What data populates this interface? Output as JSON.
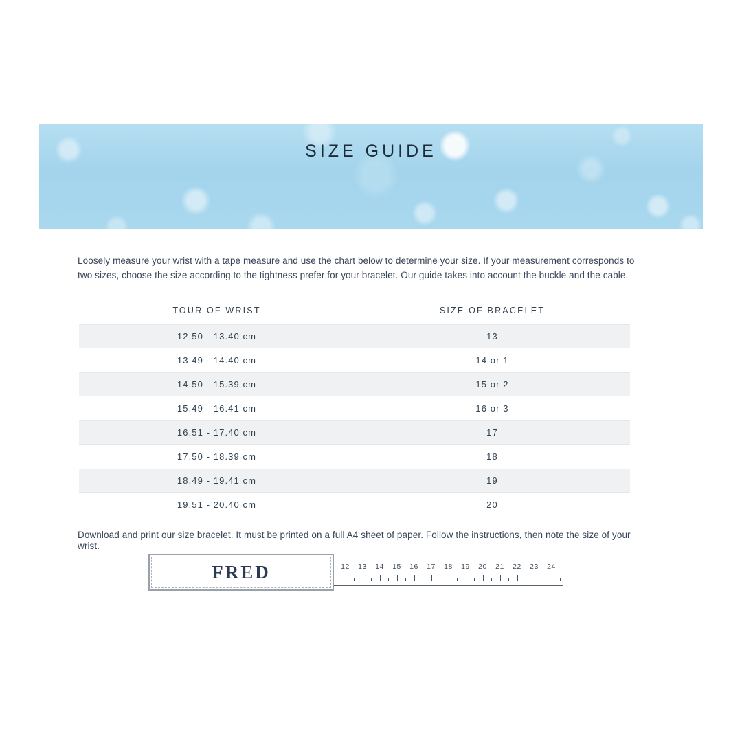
{
  "banner": {
    "title": "SIZE GUIDE"
  },
  "intro": "Loosely measure your wrist with a tape measure and use the chart below to determine your size. If your measurement corresponds to two sizes, choose the size according to the tightness prefer for your bracelet. Our guide takes into account the buckle and the cable.",
  "table": {
    "headers": [
      "TOUR OF WRIST",
      "SIZE OF BRACELET"
    ],
    "rows": [
      {
        "wrist": "12.50 - 13.40 cm",
        "size": "13"
      },
      {
        "wrist": "13.49 - 14.40 cm",
        "size": "14 or 1"
      },
      {
        "wrist": "14.50 - 15.39 cm",
        "size": "15 or 2"
      },
      {
        "wrist": "15.49 - 16.41 cm",
        "size": "16 or 3"
      },
      {
        "wrist": "16.51 - 17.40 cm",
        "size": "17"
      },
      {
        "wrist": "17.50 - 18.39 cm",
        "size": "18"
      },
      {
        "wrist": "18.49 - 19.41 cm",
        "size": "19"
      },
      {
        "wrist": "19.51 - 20.40 cm",
        "size": "20"
      }
    ]
  },
  "download_note": "Download and print our size bracelet. It must be printed on a full A4 sheet of paper. Follow the instructions, then note the size of your wrist.",
  "sizer": {
    "brand": "FRED",
    "ruler_numbers": [
      "12",
      "13",
      "14",
      "15",
      "16",
      "17",
      "18",
      "19",
      "20",
      "21",
      "22",
      "23",
      "24"
    ]
  },
  "colors": {
    "banner_blue": "#a9d8ee",
    "row_gray": "#f0f1f2",
    "body_text": "#38465a",
    "title_navy": "#1d2a38",
    "logo_navy": "#2b3a52"
  }
}
